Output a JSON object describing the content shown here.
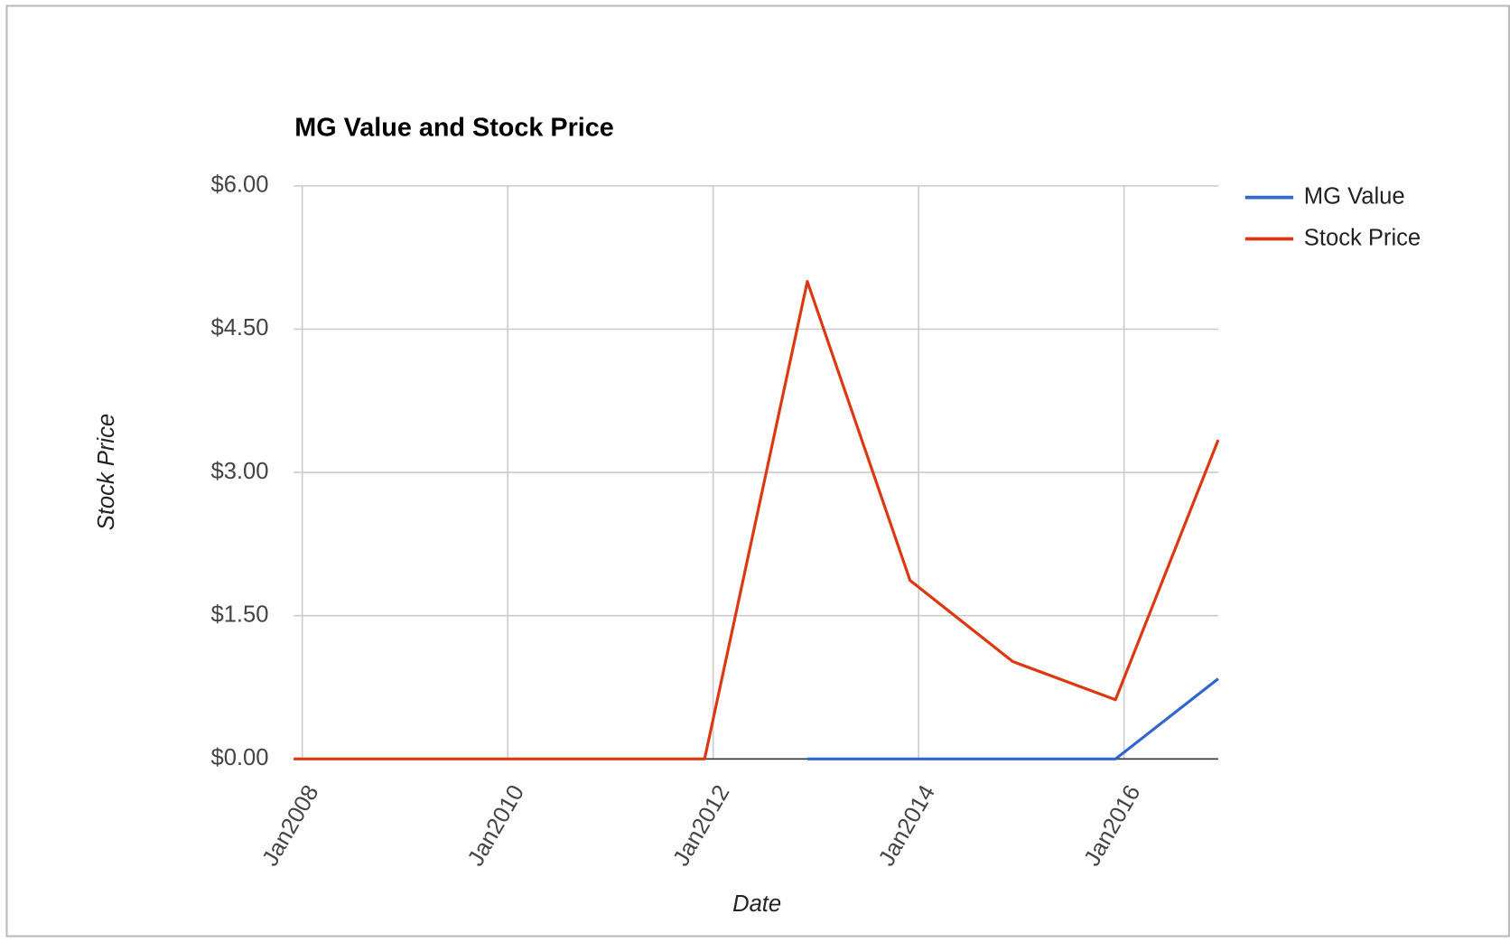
{
  "chart_data": {
    "type": "line",
    "title": "MG Value and Stock Price",
    "x_label": "Date",
    "y_label": "Stock Price",
    "x": [
      "2007-12",
      "2008-12",
      "2009-12",
      "2010-12",
      "2011-12",
      "2012-12",
      "2013-12",
      "2014-12",
      "2015-12",
      "2016-12"
    ],
    "series": [
      {
        "name": "MG Value",
        "color": "#3366cc",
        "values": [
          null,
          null,
          null,
          null,
          null,
          0,
          0,
          0,
          0,
          0.84
        ]
      },
      {
        "name": "Stock Price",
        "color": "#dc3912",
        "values": [
          0,
          0,
          0,
          0,
          0,
          5.0,
          1.87,
          1.02,
          0.62,
          3.34
        ]
      }
    ],
    "xlim": [
      "2007-12",
      "2016-12"
    ],
    "xticks": [
      {
        "value": "2008-01",
        "label": "Jan2008"
      },
      {
        "value": "2010-01",
        "label": "Jan2010"
      },
      {
        "value": "2012-01",
        "label": "Jan2012"
      },
      {
        "value": "2014-01",
        "label": "Jan2014"
      },
      {
        "value": "2016-01",
        "label": "Jan2016"
      }
    ],
    "ylim": [
      0,
      6
    ],
    "yticks": [
      {
        "value": 0,
        "label": "$0.00"
      },
      {
        "value": 1.5,
        "label": "$1.50"
      },
      {
        "value": 3,
        "label": "$3.00"
      },
      {
        "value": 4.5,
        "label": "$4.50"
      },
      {
        "value": 6,
        "label": "$6.00"
      }
    ],
    "grid": true,
    "legend": "right"
  }
}
